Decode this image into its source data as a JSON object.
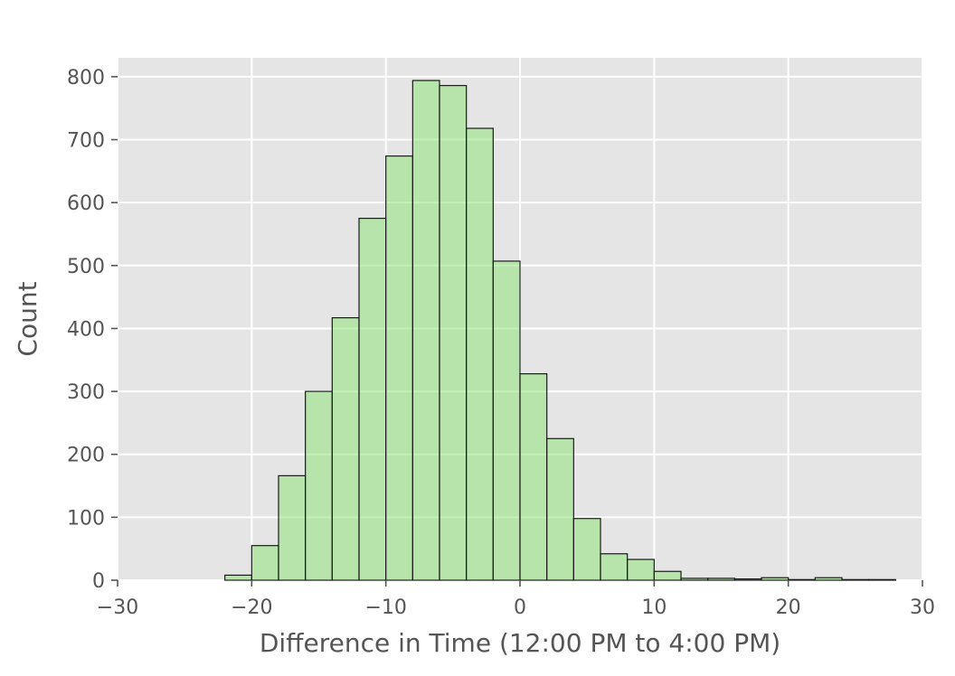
{
  "chart_data": {
    "type": "bar",
    "title": "",
    "xlabel": "Difference in Time (12:00 PM to 4:00 PM)",
    "ylabel": "Count",
    "xlim": [
      -30,
      30
    ],
    "ylim": [
      0,
      830
    ],
    "x_ticks": [
      -30,
      -20,
      -10,
      0,
      10,
      20,
      30
    ],
    "x_tick_labels": [
      "−30",
      "−20",
      "−10",
      "0",
      "10",
      "20",
      "30"
    ],
    "y_ticks": [
      0,
      100,
      200,
      300,
      400,
      500,
      600,
      700,
      800
    ],
    "y_tick_labels": [
      "0",
      "100",
      "200",
      "300",
      "400",
      "500",
      "600",
      "700",
      "800"
    ],
    "bin_edges": [
      -22,
      -20,
      -18,
      -16,
      -14,
      -12,
      -10,
      -8,
      -6,
      -4,
      -2,
      0,
      2,
      4,
      6,
      8,
      10,
      12,
      14,
      16,
      18,
      20,
      22,
      24,
      26,
      28
    ],
    "values": [
      8,
      55,
      166,
      300,
      417,
      575,
      674,
      794,
      786,
      718,
      507,
      328,
      225,
      98,
      42,
      33,
      14,
      3,
      3,
      2,
      4,
      1,
      4,
      1,
      1
    ],
    "grid": true,
    "background_color": "#e5e5e5",
    "bar_color": "#90e37a"
  }
}
